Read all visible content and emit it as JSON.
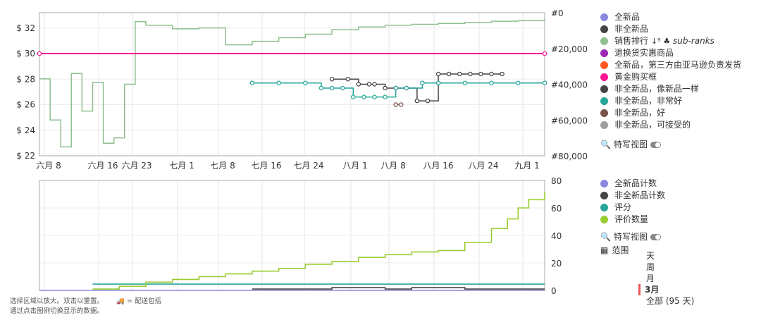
{
  "chart_data": [
    {
      "type": "line",
      "x_ticks": [
        "六月 8",
        "六月 16",
        "六月 23",
        "七月 1",
        "七月 8",
        "七月 16",
        "七月 24",
        "八月 1",
        "八月 8",
        "八月 16",
        "八月 24",
        "九月 1"
      ],
      "y_left_ticks": [
        "$ 32",
        "$ 30",
        "$ 28",
        "$ 26",
        "$ 24",
        "$ 22"
      ],
      "y_right_ticks": [
        "#0",
        "#20,000",
        "#40,000",
        "#60,000",
        "#80,000"
      ],
      "ylim_left": [
        22,
        33.2
      ],
      "ylim_right": [
        80000,
        0
      ],
      "grid": true,
      "legend_position": "right",
      "series": [
        {
          "name": "全新品",
          "color": "#8888dd",
          "values": []
        },
        {
          "name": "非全新品",
          "color": "#444444",
          "values": []
        },
        {
          "name": "销售排行",
          "axis": "right",
          "color": "#8fbf8f",
          "x_days": [
            0,
            2,
            4,
            6,
            8,
            10,
            12,
            14,
            16,
            18,
            20,
            25,
            30,
            35,
            40,
            45,
            50,
            55,
            60,
            65,
            70,
            75,
            80,
            85,
            90,
            95
          ],
          "values": [
            37000,
            60000,
            75000,
            34000,
            55000,
            39000,
            73000,
            70000,
            40000,
            5000,
            7000,
            9000,
            8500,
            18000,
            16000,
            14000,
            12000,
            9500,
            8000,
            7000,
            6500,
            6000,
            5500,
            4800,
            4500,
            3500
          ]
        },
        {
          "name": "退换货实惠商品",
          "color": "#9c27b0",
          "values": []
        },
        {
          "name": "全新品，第三方由亚马逊负责发货",
          "color": "#ff5722",
          "values": []
        },
        {
          "name": "黄金购买框",
          "color": "#ff1493",
          "x_days": [
            0,
            95
          ],
          "values": [
            30.0,
            30.0
          ]
        },
        {
          "name": "非全新品，像新品一样",
          "color": "#444444",
          "x_days": [
            55,
            58,
            60,
            62,
            63,
            65,
            67,
            69,
            71,
            73,
            75,
            77,
            79,
            81,
            83,
            85,
            87
          ],
          "values": [
            28.0,
            28.0,
            27.6,
            27.6,
            27.6,
            27.3,
            27.3,
            27.3,
            26.3,
            26.3,
            28.4,
            28.4,
            28.4,
            28.4,
            28.4,
            28.4,
            28.4
          ]
        },
        {
          "name": "非全新品，非常好",
          "color": "#26a69a",
          "x_days": [
            40,
            45,
            50,
            53,
            55,
            57,
            59,
            61,
            63,
            65,
            67,
            69,
            72,
            75,
            80,
            85,
            90,
            95
          ],
          "values": [
            27.7,
            27.7,
            27.7,
            27.3,
            27.3,
            27.3,
            26.6,
            26.6,
            26.6,
            26.6,
            27.3,
            27.3,
            27.7,
            27.7,
            27.7,
            27.7,
            27.7,
            27.7
          ]
        },
        {
          "name": "非全新品，好",
          "color": "#795548",
          "x_days": [
            67,
            68
          ],
          "values": [
            26.0,
            26.0
          ]
        },
        {
          "name": "非全新品，可接受的",
          "color": "#9e9e9e",
          "values": []
        }
      ],
      "sub_ranks_label": "sub-ranks",
      "close_view_label": "特写视图"
    },
    {
      "type": "line",
      "x_ticks": [
        "六月 8",
        "六月 16",
        "六月 23",
        "七月 1",
        "七月 8",
        "七月 16",
        "七月 24",
        "八月 1",
        "八月 8",
        "八月 16",
        "八月 24",
        "九月 1"
      ],
      "y_right_ticks": [
        "80",
        "60",
        "40",
        "20",
        "0"
      ],
      "ylim": [
        0,
        80
      ],
      "grid": true,
      "legend_position": "right",
      "series": [
        {
          "name": "全新品计数",
          "color": "#8888dd",
          "x_days": [
            0,
            95
          ],
          "values": [
            0,
            0
          ]
        },
        {
          "name": "非全新品计数",
          "color": "#444444",
          "x_days": [
            40,
            50,
            55,
            60,
            65,
            70,
            75,
            80,
            85,
            90,
            95
          ],
          "values": [
            1,
            1,
            2,
            2,
            1,
            2,
            2,
            1,
            1,
            1,
            1
          ]
        },
        {
          "name": "评分",
          "color": "#26a69a",
          "x_days": [
            10,
            95
          ],
          "values": [
            4.6,
            4.6
          ]
        },
        {
          "name": "评价数量",
          "color": "#9acd32",
          "x_days": [
            10,
            15,
            20,
            25,
            30,
            35,
            40,
            45,
            50,
            55,
            60,
            65,
            70,
            75,
            80,
            85,
            88,
            90,
            92,
            95
          ],
          "values": [
            1,
            3,
            6,
            8,
            10,
            12,
            14,
            16,
            19,
            21,
            24,
            26,
            28,
            29,
            35,
            45,
            52,
            60,
            66,
            72
          ]
        }
      ],
      "close_view_label": "特写视图"
    }
  ],
  "range": {
    "label": "范围",
    "options": [
      "天",
      "周",
      "月",
      "3月",
      "全部 (95 天)"
    ],
    "selected": "3月"
  },
  "footer": {
    "line1": "选择区域以放大。双击以重置。",
    "shipping_note": "= 配送包括",
    "line2": "通过点击图例切换显示的数据。"
  }
}
